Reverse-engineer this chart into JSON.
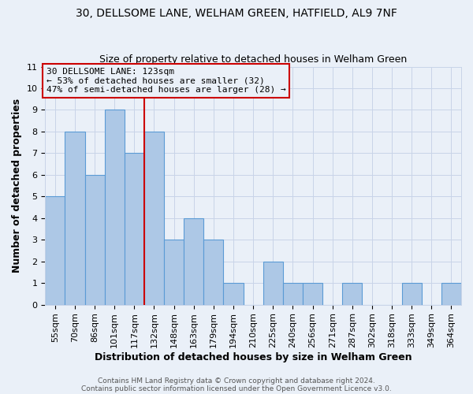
{
  "title": "30, DELLSOME LANE, WELHAM GREEN, HATFIELD, AL9 7NF",
  "subtitle": "Size of property relative to detached houses in Welham Green",
  "xlabel": "Distribution of detached houses by size in Welham Green",
  "ylabel": "Number of detached properties",
  "bar_labels": [
    "55sqm",
    "70sqm",
    "86sqm",
    "101sqm",
    "117sqm",
    "132sqm",
    "148sqm",
    "163sqm",
    "179sqm",
    "194sqm",
    "210sqm",
    "225sqm",
    "240sqm",
    "256sqm",
    "271sqm",
    "287sqm",
    "302sqm",
    "318sqm",
    "333sqm",
    "349sqm",
    "364sqm"
  ],
  "bar_values": [
    5,
    8,
    6,
    9,
    7,
    8,
    3,
    4,
    3,
    1,
    0,
    2,
    1,
    1,
    0,
    1,
    0,
    0,
    1,
    0,
    1
  ],
  "bar_color": "#adc8e6",
  "bar_edgecolor": "#5b9bd5",
  "bar_linewidth": 0.8,
  "vline_x_index": 4.5,
  "vline_color": "#cc0000",
  "vline_linewidth": 1.5,
  "annotation_line1": "30 DELLSOME LANE: 123sqm",
  "annotation_line2": "← 53% of detached houses are smaller (32)",
  "annotation_line3": "47% of semi-detached houses are larger (28) →",
  "annotation_fontsize": 8,
  "box_edgecolor": "#cc0000",
  "box_facecolor": "#eaf0f8",
  "ylim": [
    0,
    11
  ],
  "yticks": [
    0,
    1,
    2,
    3,
    4,
    5,
    6,
    7,
    8,
    9,
    10,
    11
  ],
  "grid_color": "#c8d4e8",
  "background_color": "#eaf0f8",
  "footer_line1": "Contains HM Land Registry data © Crown copyright and database right 2024.",
  "footer_line2": "Contains public sector information licensed under the Open Government Licence v3.0.",
  "title_fontsize": 10,
  "subtitle_fontsize": 9,
  "xlabel_fontsize": 9,
  "ylabel_fontsize": 9,
  "tick_fontsize": 8
}
